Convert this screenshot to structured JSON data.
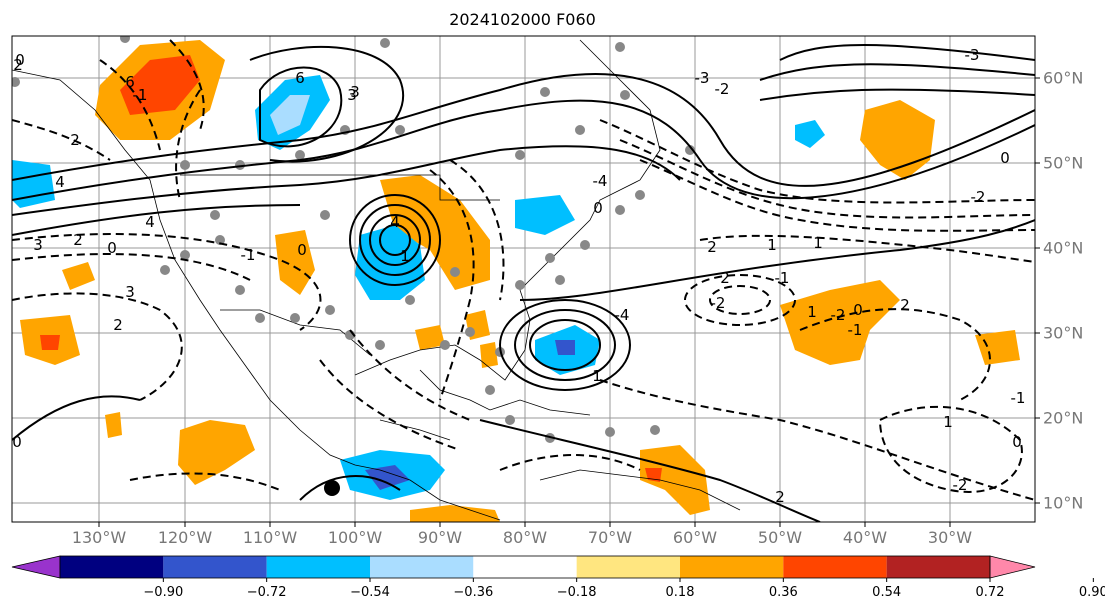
{
  "title": "2024102000 F060",
  "longitude_labels": [
    "130°W",
    "120°W",
    "110°W",
    "100°W",
    "90°W",
    "80°W",
    "70°W",
    "60°W",
    "50°W",
    "40°W",
    "30°W"
  ],
  "latitude_labels": [
    "60°N",
    "50°N",
    "40°N",
    "30°N",
    "20°N",
    "10°N"
  ],
  "colorbar": {
    "ticks": [
      "−0.90",
      "−0.72",
      "−0.54",
      "−0.36",
      "−0.18",
      "0.18",
      "0.36",
      "0.54",
      "0.72",
      "0.90"
    ],
    "colors": [
      "#9933cc",
      "#000080",
      "#3355cc",
      "#00bfff",
      "#aaddff",
      "#ffffff",
      "#ffe680",
      "#ffa500",
      "#ff4500",
      "#b22222",
      "#ff88aa"
    ]
  },
  "contour_labels": [
    "6",
    "3",
    "6",
    "3",
    "4",
    "1",
    "-1",
    "2",
    "4",
    "3",
    "2",
    "0",
    "4",
    "-1",
    "0",
    "3",
    "2",
    "-2",
    "-3",
    "2",
    "1",
    "2",
    "-1",
    "-2",
    "1",
    "0",
    "2",
    "-2",
    "1",
    "0",
    "-2",
    "-1",
    "0",
    "2",
    "0",
    "-4",
    "-3",
    "0",
    "-2",
    "1",
    "-4",
    "1",
    "0",
    "-1",
    "2"
  ]
}
